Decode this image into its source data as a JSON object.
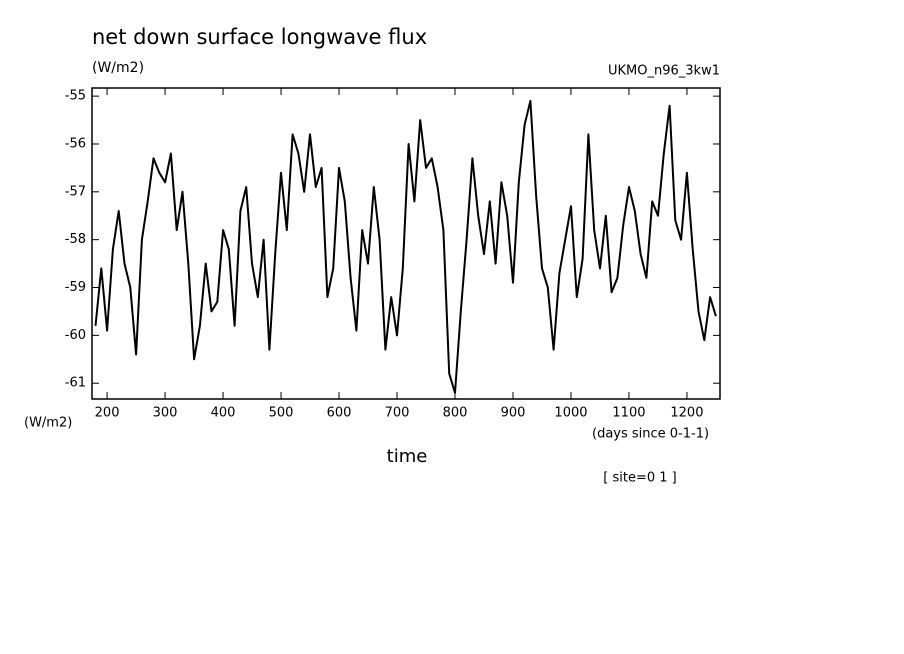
{
  "chart_data": {
    "type": "line",
    "title": "net down surface longwave flux",
    "y_unit_top": "(W/m2)",
    "model": "UKMO_n96_3kw1",
    "y_unit_bottom": "(W/m2)",
    "x_unit": "(days since 0-1-1)",
    "x_label": "time",
    "site": "[ site=0 1 ]",
    "color": "#000000",
    "xlim": [
      174,
      1257
    ],
    "ylim": [
      -61.33,
      -54.83
    ],
    "xticks": [
      200,
      300,
      400,
      500,
      600,
      700,
      800,
      900,
      1000,
      1100,
      1200
    ],
    "yticks": [
      -61,
      -60,
      -59,
      -58,
      -57,
      -56,
      -55
    ],
    "x": [
      180,
      190,
      200,
      210,
      220,
      230,
      240,
      250,
      260,
      270,
      280,
      290,
      300,
      310,
      320,
      330,
      340,
      350,
      360,
      370,
      380,
      390,
      400,
      410,
      420,
      430,
      440,
      450,
      460,
      470,
      480,
      490,
      500,
      510,
      520,
      530,
      540,
      550,
      560,
      570,
      580,
      590,
      600,
      610,
      620,
      630,
      640,
      650,
      660,
      670,
      680,
      690,
      700,
      710,
      720,
      730,
      740,
      750,
      760,
      770,
      780,
      790,
      800,
      810,
      820,
      830,
      840,
      850,
      860,
      870,
      880,
      890,
      900,
      910,
      920,
      930,
      940,
      950,
      960,
      970,
      980,
      990,
      1000,
      1010,
      1020,
      1030,
      1040,
      1050,
      1060,
      1070,
      1080,
      1090,
      1100,
      1110,
      1120,
      1130,
      1140,
      1150,
      1160,
      1170,
      1180,
      1190,
      1200,
      1210,
      1220,
      1230,
      1240,
      1250
    ],
    "values": [
      -59.8,
      -58.6,
      -59.9,
      -58.2,
      -57.4,
      -58.5,
      -59.0,
      -60.4,
      -58.0,
      -57.2,
      -56.3,
      -56.6,
      -56.8,
      -56.2,
      -57.8,
      -57.0,
      -58.5,
      -60.5,
      -59.8,
      -58.5,
      -59.5,
      -59.3,
      -57.8,
      -58.2,
      -59.8,
      -57.4,
      -56.9,
      -58.5,
      -59.2,
      -58.0,
      -60.3,
      -58.3,
      -56.6,
      -57.8,
      -55.8,
      -56.2,
      -57.0,
      -55.8,
      -56.9,
      -56.5,
      -59.2,
      -58.6,
      -56.5,
      -57.2,
      -58.8,
      -59.9,
      -57.8,
      -58.5,
      -56.9,
      -58.0,
      -60.3,
      -59.2,
      -60.0,
      -58.6,
      -56.0,
      -57.2,
      -55.5,
      -56.5,
      -56.3,
      -56.9,
      -57.8,
      -60.8,
      -61.2,
      -59.5,
      -58.0,
      -56.3,
      -57.5,
      -58.3,
      -57.2,
      -58.5,
      -56.8,
      -57.5,
      -58.9,
      -56.8,
      -55.6,
      -55.1,
      -57.1,
      -58.6,
      -59.0,
      -60.3,
      -58.7,
      -58.0,
      -57.3,
      -59.2,
      -58.4,
      -55.8,
      -57.8,
      -58.6,
      -57.5,
      -59.1,
      -58.8,
      -57.7,
      -56.9,
      -57.4,
      -58.3,
      -58.8,
      -57.2,
      -57.5,
      -56.2,
      -55.2,
      -57.6,
      -58.0,
      -56.6,
      -58.2,
      -59.5,
      -60.1,
      -59.2,
      -59.6
    ]
  }
}
